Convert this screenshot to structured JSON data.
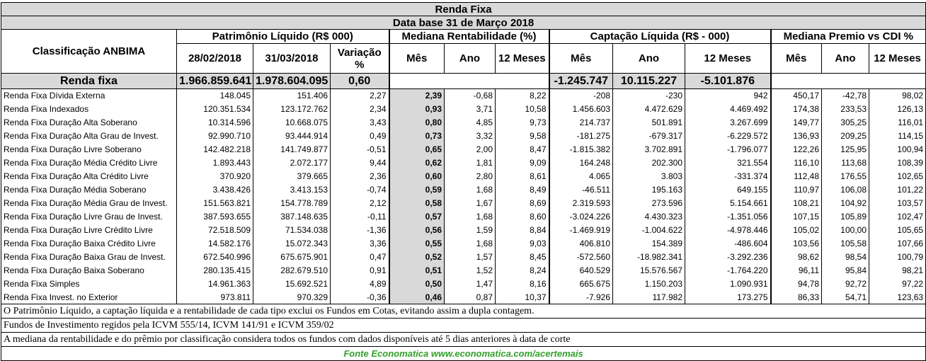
{
  "title": "Renda Fixa",
  "subtitle": "Data base 31 de Março 2018",
  "headers": {
    "classificacao": "Classificação ANBIMA",
    "patrimonio": "Patrimônio Líquido (R$ 000)",
    "mediana_rent": "Mediana Rentabilidade (%)",
    "captacao": "Captação Líquida (R$ - 000)",
    "mediana_premio": "Mediana Premio vs CDI %",
    "pl_feb": "28/02/2018",
    "pl_mar": "31/03/2018",
    "variacao": "Variação %",
    "mes": "Mês",
    "ano": "Ano",
    "doze": "12 Meses"
  },
  "total": {
    "name": "Renda fixa",
    "pl_feb": "1.966.859.641",
    "pl_mar": "1.978.604.095",
    "variacao": "0,60",
    "cap_mes": "-1.245.747",
    "cap_ano": "10.115.227",
    "cap_12": "-5.101.876"
  },
  "rows": [
    {
      "name": "Renda Fixa Dívida Externa",
      "pl_feb": "148.045",
      "pl_mar": "151.406",
      "var": "2,27",
      "r_mes": "2,39",
      "r_ano": "-0,68",
      "r_12": "8,22",
      "c_mes": "-208",
      "c_ano": "-230",
      "c_12": "942",
      "p_mes": "450,17",
      "p_ano": "-42,78",
      "p_12": "98,02"
    },
    {
      "name": "Renda Fixa Indexados",
      "pl_feb": "120.351.534",
      "pl_mar": "123.172.762",
      "var": "2,34",
      "r_mes": "0,93",
      "r_ano": "3,71",
      "r_12": "10,58",
      "c_mes": "1.456.603",
      "c_ano": "4.472.629",
      "c_12": "4.469.492",
      "p_mes": "174,38",
      "p_ano": "233,53",
      "p_12": "126,13"
    },
    {
      "name": "Renda Fixa Duração Alta Soberano",
      "pl_feb": "10.314.596",
      "pl_mar": "10.668.075",
      "var": "3,43",
      "r_mes": "0,80",
      "r_ano": "4,85",
      "r_12": "9,73",
      "c_mes": "214.737",
      "c_ano": "501.891",
      "c_12": "3.267.699",
      "p_mes": "149,77",
      "p_ano": "305,25",
      "p_12": "116,01"
    },
    {
      "name": "Renda Fixa Duração Alta Grau de Invest.",
      "pl_feb": "92.990.710",
      "pl_mar": "93.444.914",
      "var": "0,49",
      "r_mes": "0,73",
      "r_ano": "3,32",
      "r_12": "9,58",
      "c_mes": "-181.275",
      "c_ano": "-679.317",
      "c_12": "-6.229.572",
      "p_mes": "136,93",
      "p_ano": "209,25",
      "p_12": "114,15"
    },
    {
      "name": "Renda Fixa Duração Livre Soberano",
      "pl_feb": "142.482.218",
      "pl_mar": "141.749.877",
      "var": "-0,51",
      "r_mes": "0,65",
      "r_ano": "2,00",
      "r_12": "8,47",
      "c_mes": "-1.815.382",
      "c_ano": "3.702.891",
      "c_12": "-1.796.077",
      "p_mes": "122,26",
      "p_ano": "125,95",
      "p_12": "100,94"
    },
    {
      "name": "Renda Fixa Duração Média Crédito Livre",
      "pl_feb": "1.893.443",
      "pl_mar": "2.072.177",
      "var": "9,44",
      "r_mes": "0,62",
      "r_ano": "1,81",
      "r_12": "9,09",
      "c_mes": "164.248",
      "c_ano": "202.300",
      "c_12": "321.554",
      "p_mes": "116,10",
      "p_ano": "113,68",
      "p_12": "108,39"
    },
    {
      "name": "Renda Fixa Duração Alta Crédito Livre",
      "pl_feb": "370.920",
      "pl_mar": "379.665",
      "var": "2,36",
      "r_mes": "0,60",
      "r_ano": "2,80",
      "r_12": "8,61",
      "c_mes": "4.065",
      "c_ano": "3.803",
      "c_12": "-331.374",
      "p_mes": "112,48",
      "p_ano": "176,55",
      "p_12": "102,65"
    },
    {
      "name": "Renda Fixa Duração Média Soberano",
      "pl_feb": "3.438.426",
      "pl_mar": "3.413.153",
      "var": "-0,74",
      "r_mes": "0,59",
      "r_ano": "1,68",
      "r_12": "8,49",
      "c_mes": "-46.511",
      "c_ano": "195.163",
      "c_12": "649.155",
      "p_mes": "110,97",
      "p_ano": "106,08",
      "p_12": "101,22"
    },
    {
      "name": "Renda Fixa Duração Média Grau de Invest.",
      "pl_feb": "151.563.821",
      "pl_mar": "154.778.789",
      "var": "2,12",
      "r_mes": "0,58",
      "r_ano": "1,67",
      "r_12": "8,69",
      "c_mes": "2.319.593",
      "c_ano": "273.596",
      "c_12": "5.154.661",
      "p_mes": "108,21",
      "p_ano": "104,92",
      "p_12": "103,57"
    },
    {
      "name": "Renda Fixa Duração Livre Grau de Invest.",
      "pl_feb": "387.593.655",
      "pl_mar": "387.148.635",
      "var": "-0,11",
      "r_mes": "0,57",
      "r_ano": "1,68",
      "r_12": "8,60",
      "c_mes": "-3.024.226",
      "c_ano": "4.430.323",
      "c_12": "-1.351.056",
      "p_mes": "107,15",
      "p_ano": "105,89",
      "p_12": "102,47"
    },
    {
      "name": "Renda Fixa Duração Livre Crédito Livre",
      "pl_feb": "72.518.509",
      "pl_mar": "71.534.038",
      "var": "-1,36",
      "r_mes": "0,56",
      "r_ano": "1,59",
      "r_12": "8,84",
      "c_mes": "-1.469.919",
      "c_ano": "-1.004.622",
      "c_12": "-4.978.446",
      "p_mes": "105,02",
      "p_ano": "100,00",
      "p_12": "105,65"
    },
    {
      "name": "Renda Fixa Duração Baixa Crédito Livre",
      "pl_feb": "14.582.176",
      "pl_mar": "15.072.343",
      "var": "3,36",
      "r_mes": "0,55",
      "r_ano": "1,68",
      "r_12": "9,03",
      "c_mes": "406.810",
      "c_ano": "154.389",
      "c_12": "-486.604",
      "p_mes": "103,56",
      "p_ano": "105,58",
      "p_12": "107,66"
    },
    {
      "name": "Renda Fixa Duração Baixa Grau de Invest.",
      "pl_feb": "672.540.996",
      "pl_mar": "675.675.901",
      "var": "0,47",
      "r_mes": "0,52",
      "r_ano": "1,57",
      "r_12": "8,45",
      "c_mes": "-572.560",
      "c_ano": "-18.982.341",
      "c_12": "-3.292.236",
      "p_mes": "98,62",
      "p_ano": "98,54",
      "p_12": "100,79"
    },
    {
      "name": "Renda Fixa Duração Baixa Soberano",
      "pl_feb": "280.135.415",
      "pl_mar": "282.679.510",
      "var": "0,91",
      "r_mes": "0,51",
      "r_ano": "1,52",
      "r_12": "8,24",
      "c_mes": "640.529",
      "c_ano": "15.576.567",
      "c_12": "-1.764.220",
      "p_mes": "96,11",
      "p_ano": "95,84",
      "p_12": "98,21"
    },
    {
      "name": "Renda Fixa Simples",
      "pl_feb": "14.961.363",
      "pl_mar": "15.692.521",
      "var": "4,89",
      "r_mes": "0,50",
      "r_ano": "1,47",
      "r_12": "8,16",
      "c_mes": "665.675",
      "c_ano": "1.150.203",
      "c_12": "1.090.931",
      "p_mes": "94,78",
      "p_ano": "92,72",
      "p_12": "97,22"
    },
    {
      "name": "Renda Fixa Invest. no Exterior",
      "pl_feb": "973.811",
      "pl_mar": "970.329",
      "var": "-0,36",
      "r_mes": "0,46",
      "r_ano": "0,87",
      "r_12": "10,37",
      "c_mes": "-7.926",
      "c_ano": "117.982",
      "c_12": "173.275",
      "p_mes": "86,33",
      "p_ano": "54,71",
      "p_12": "123,63"
    }
  ],
  "notes": [
    "O Patrimônio Líquido, a captação líquida e a rentabilidade de cada tipo exclui os Fundos em Cotas, evitando assim a dupla contagem.",
    "Fundos de Investimento regidos pela ICVM 555/14, ICVM 141/91 e ICVM 359/02",
    "A mediana da rentabilidade  e do prêmio por classificação considera todos os fundos com dados disponíveis até 5 dias anteriores à data de corte"
  ],
  "source": "Fonte Economatica www.economatica.com/acertemais"
}
